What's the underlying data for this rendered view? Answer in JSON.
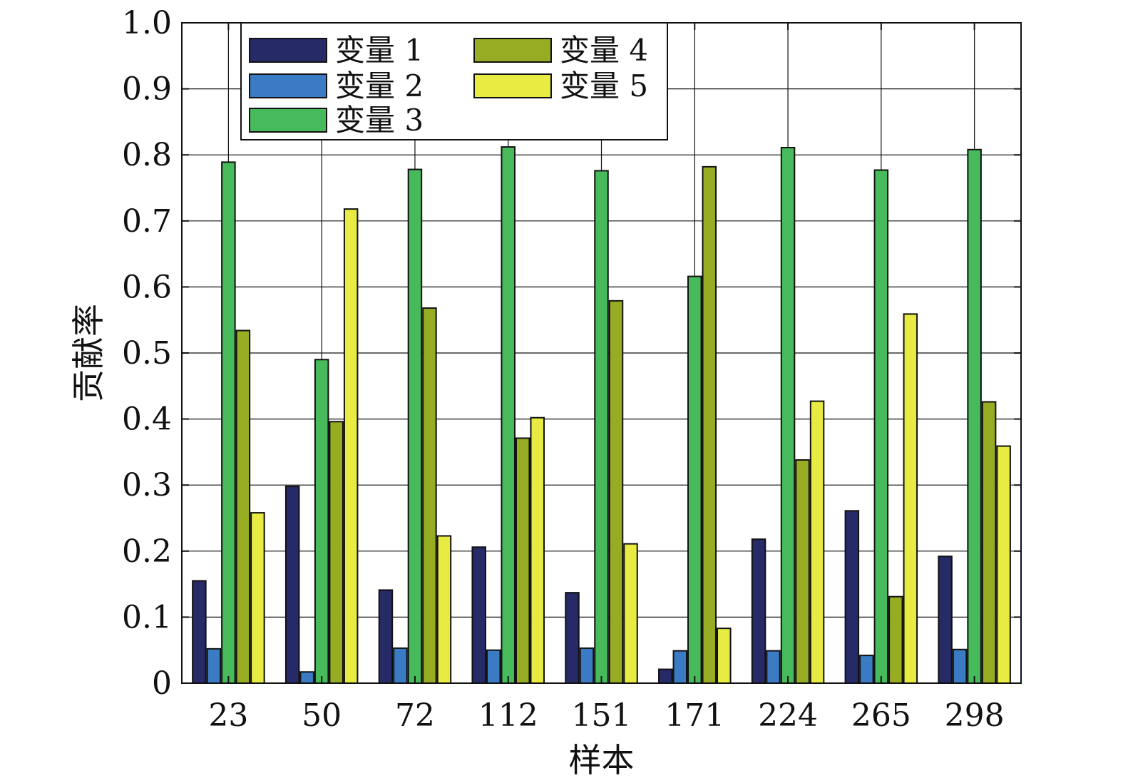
{
  "chart_data": {
    "type": "bar",
    "title": "",
    "xlabel": "样本",
    "ylabel": "贡献率",
    "ylim": [
      0,
      1.0
    ],
    "yticks": [
      0,
      0.1,
      0.2,
      0.3,
      0.4,
      0.5,
      0.6,
      0.7,
      0.8,
      0.9,
      1.0
    ],
    "ytick_labels": [
      "0",
      "0.1",
      "0.2",
      "0.3",
      "0.4",
      "0.5",
      "0.6",
      "0.7",
      "0.8",
      "0.9",
      "1.0"
    ],
    "grid": true,
    "legend_position": "top-left",
    "categories": [
      "23",
      "50",
      "72",
      "112",
      "151",
      "171",
      "224",
      "265",
      "298"
    ],
    "series": [
      {
        "name": "变量 1",
        "color": "#262a66",
        "values": [
          0.155,
          0.298,
          0.141,
          0.206,
          0.137,
          0.021,
          0.218,
          0.261,
          0.192
        ]
      },
      {
        "name": "变量 2",
        "color": "#3a7bc3",
        "values": [
          0.052,
          0.017,
          0.053,
          0.05,
          0.053,
          0.049,
          0.049,
          0.042,
          0.051
        ]
      },
      {
        "name": "变量 3",
        "color": "#47bb5c",
        "values": [
          0.789,
          0.49,
          0.778,
          0.812,
          0.776,
          0.616,
          0.811,
          0.777,
          0.808
        ]
      },
      {
        "name": "变量 4",
        "color": "#97ac23",
        "values": [
          0.534,
          0.396,
          0.568,
          0.371,
          0.579,
          0.782,
          0.338,
          0.131,
          0.426
        ]
      },
      {
        "name": "变量 5",
        "color": "#e7eb42",
        "values": [
          0.258,
          0.718,
          0.223,
          0.402,
          0.211,
          0.083,
          0.427,
          0.559,
          0.359
        ]
      }
    ]
  }
}
